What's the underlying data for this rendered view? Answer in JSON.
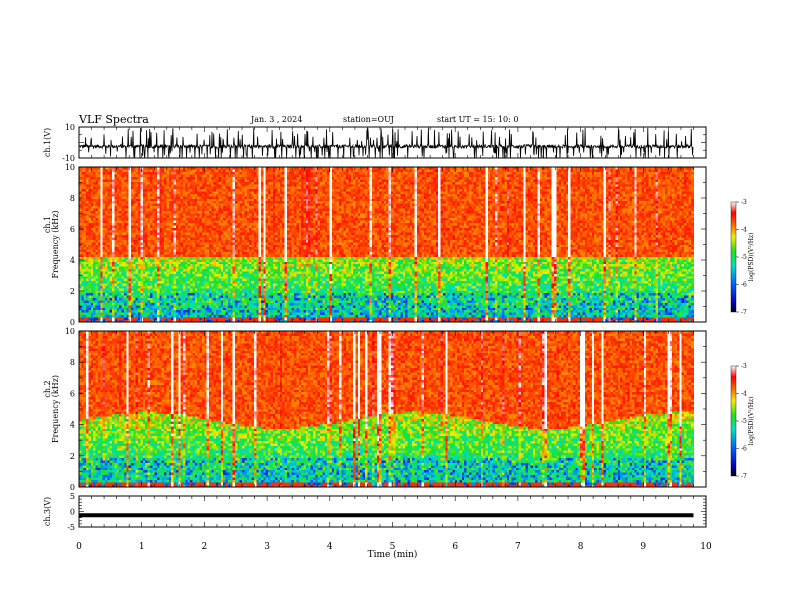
{
  "header": {
    "title": "VLF Spectra",
    "date": "Jan. 3 , 2024",
    "station": "station=OUJ",
    "start": "start UT =  15: 10: 0"
  },
  "chart_data": [
    {
      "type": "line",
      "panel": "ch1-waveform",
      "ylabel": "ch.1(V)",
      "yticks": [
        "10",
        "-10"
      ],
      "ylim": [
        -10,
        10
      ],
      "xlim": [
        0,
        10
      ],
      "baseline": -2.5,
      "spike_density": "high"
    },
    {
      "type": "heatmap",
      "panel": "ch1-spectrogram",
      "ylabel_top": "ch.1",
      "ylabel": "Frequency (kHz)",
      "yticks": [
        "0",
        "2",
        "4",
        "6",
        "8",
        "10"
      ],
      "ylim": [
        0,
        10
      ],
      "xlim": [
        0,
        10
      ],
      "colorbar": {
        "label": "log(PSD)(V²/Hz)",
        "ticks": [
          "-3",
          "-4",
          "-5",
          "-6",
          "-7"
        ],
        "range": [
          -7,
          -3
        ]
      }
    },
    {
      "type": "heatmap",
      "panel": "ch2-spectrogram",
      "ylabel_top": "ch.2",
      "ylabel": "Frequency (kHz)",
      "yticks": [
        "0",
        "2",
        "4",
        "6",
        "8",
        "10"
      ],
      "ylim": [
        0,
        10
      ],
      "xlim": [
        0,
        10
      ],
      "colorbar": {
        "label": "log(PSD)(V²/Hz)",
        "ticks": [
          "-3",
          "-4",
          "-5",
          "-6",
          "-7"
        ],
        "range": [
          -7,
          -3
        ]
      }
    },
    {
      "type": "line",
      "panel": "ch3-waveform",
      "ylabel": "ch.3(V)",
      "yticks": [
        "5",
        "0",
        "-5"
      ],
      "ylim": [
        -5,
        5
      ],
      "xlim": [
        0,
        10
      ],
      "value": -1.2
    }
  ],
  "xaxis": {
    "label": "Time (min)",
    "ticks": [
      "0",
      "1",
      "2",
      "3",
      "4",
      "5",
      "6",
      "7",
      "8",
      "9",
      "10"
    ],
    "data_end": 9.8
  },
  "colors": {
    "waveform": "#000000",
    "frame": "#000000"
  }
}
